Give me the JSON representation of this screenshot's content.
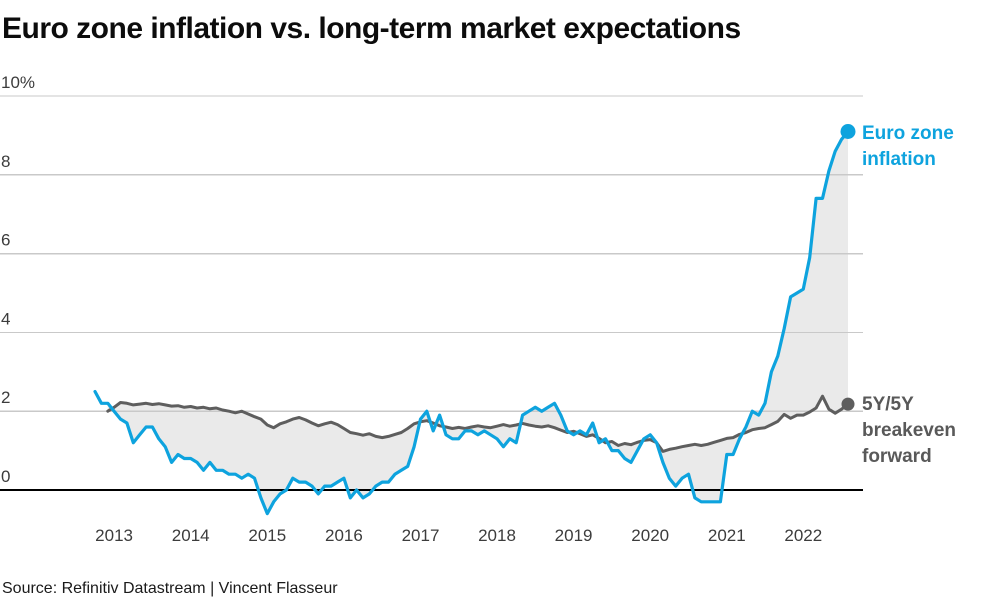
{
  "title": "Euro zone inflation vs. long-term market expectations",
  "source": "Source: Refinitiv Datastream | Vincent Flasseur",
  "legend": {
    "inflation_label": "Euro zone inflation",
    "breakeven_label": "5Y/5Y breakeven forward"
  },
  "chart_data": {
    "type": "line",
    "title": "Euro zone inflation vs. long-term market expectations",
    "unit": "%",
    "grid": "horizontal",
    "legend_position": "end-of-line labels with dots",
    "ylim": [
      -1,
      10.5
    ],
    "x_range": [
      "2012-10",
      "2022-08"
    ],
    "frequency": "monthly",
    "yticks": [
      {
        "label": "10%",
        "value": 10
      },
      {
        "label": "8",
        "value": 8
      },
      {
        "label": "6",
        "value": 6
      },
      {
        "label": "4",
        "value": 4
      },
      {
        "label": "2",
        "value": 2
      },
      {
        "label": "0",
        "value": 0
      }
    ],
    "xticks": [
      "2013",
      "2014",
      "2015",
      "2016",
      "2017",
      "2018",
      "2019",
      "2020",
      "2021",
      "2022"
    ],
    "colors": {
      "inflation": "#0ea3de",
      "breakeven": "#5e5e5e",
      "fill": "#eaeaea",
      "grid": "#c9c9c9",
      "zero_axis": "#000000",
      "tick_text": "#3c3c3c"
    },
    "series": [
      {
        "name": "Euro zone inflation",
        "start": "2012-10",
        "values": [
          2.5,
          2.2,
          2.2,
          2.0,
          1.8,
          1.7,
          1.2,
          1.4,
          1.6,
          1.6,
          1.3,
          1.1,
          0.7,
          0.9,
          0.8,
          0.8,
          0.7,
          0.5,
          0.7,
          0.5,
          0.5,
          0.4,
          0.4,
          0.3,
          0.4,
          0.3,
          -0.2,
          -0.6,
          -0.3,
          -0.1,
          0.0,
          0.3,
          0.2,
          0.2,
          0.1,
          -0.1,
          0.1,
          0.1,
          0.2,
          0.3,
          -0.2,
          0.0,
          -0.2,
          -0.1,
          0.1,
          0.2,
          0.2,
          0.4,
          0.5,
          0.6,
          1.1,
          1.8,
          2.0,
          1.5,
          1.9,
          1.4,
          1.3,
          1.3,
          1.5,
          1.5,
          1.4,
          1.5,
          1.4,
          1.3,
          1.1,
          1.3,
          1.2,
          1.9,
          2.0,
          2.1,
          2.0,
          2.1,
          2.2,
          1.9,
          1.5,
          1.4,
          1.5,
          1.4,
          1.7,
          1.2,
          1.3,
          1.0,
          1.0,
          0.8,
          0.7,
          1.0,
          1.3,
          1.4,
          1.2,
          0.7,
          0.3,
          0.1,
          0.3,
          0.4,
          -0.2,
          -0.3,
          -0.3,
          -0.3,
          -0.3,
          0.9,
          0.9,
          1.3,
          1.6,
          2.0,
          1.9,
          2.2,
          3.0,
          3.4,
          4.1,
          4.9,
          5.0,
          5.1,
          5.9,
          7.4,
          7.4,
          8.1,
          8.6,
          8.9,
          9.1
        ]
      },
      {
        "name": "5Y/5Y breakeven forward",
        "start": "2012-12",
        "values": [
          2.0,
          2.1,
          2.22,
          2.2,
          2.16,
          2.18,
          2.2,
          2.17,
          2.19,
          2.16,
          2.13,
          2.14,
          2.1,
          2.12,
          2.08,
          2.1,
          2.06,
          2.08,
          2.03,
          2.0,
          1.96,
          2.0,
          1.93,
          1.86,
          1.8,
          1.65,
          1.58,
          1.68,
          1.73,
          1.8,
          1.84,
          1.78,
          1.7,
          1.63,
          1.68,
          1.72,
          1.66,
          1.56,
          1.46,
          1.43,
          1.39,
          1.43,
          1.36,
          1.33,
          1.36,
          1.41,
          1.46,
          1.56,
          1.68,
          1.73,
          1.76,
          1.7,
          1.63,
          1.6,
          1.56,
          1.59,
          1.56,
          1.6,
          1.63,
          1.6,
          1.58,
          1.62,
          1.66,
          1.62,
          1.65,
          1.69,
          1.65,
          1.62,
          1.6,
          1.63,
          1.58,
          1.52,
          1.46,
          1.49,
          1.43,
          1.36,
          1.4,
          1.31,
          1.2,
          1.23,
          1.13,
          1.18,
          1.15,
          1.21,
          1.26,
          1.28,
          1.2,
          0.98,
          1.03,
          1.06,
          1.1,
          1.13,
          1.16,
          1.13,
          1.16,
          1.21,
          1.26,
          1.31,
          1.33,
          1.41,
          1.46,
          1.53,
          1.56,
          1.58,
          1.66,
          1.74,
          1.92,
          1.82,
          1.9,
          1.9,
          1.98,
          2.08,
          2.38,
          2.05,
          1.95,
          2.05,
          2.18
        ]
      }
    ]
  }
}
